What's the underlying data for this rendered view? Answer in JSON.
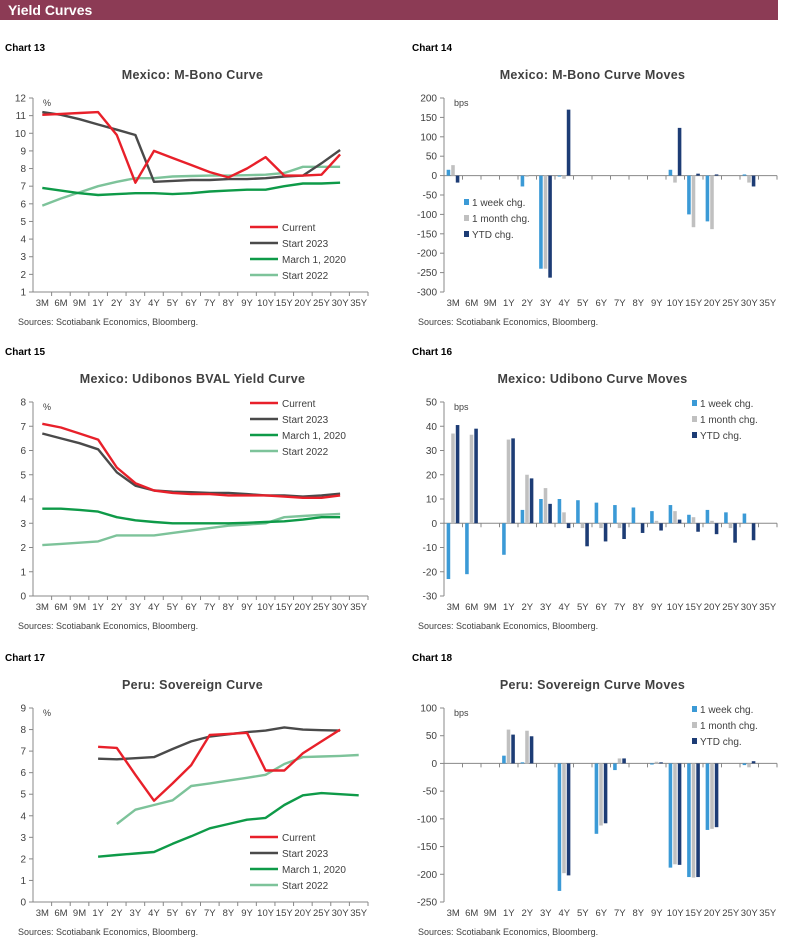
{
  "header": {
    "title": "Yield Curves"
  },
  "colors": {
    "current": "#E8202A",
    "start2023": "#4A4A4A",
    "march2020": "#0E9A48",
    "start2022": "#7DC39A",
    "week": "#3B9AD6",
    "month": "#C0C0C0",
    "ytd": "#1D3C75",
    "header_bg": "#8C3B55"
  },
  "charts": [
    {
      "label": "Chart 13",
      "title": "Mexico: M-Bono Curve",
      "sources": "Sources: Scotiabank Economics, Bloomberg.",
      "chart_data": {
        "type": "line",
        "unit": "%",
        "ylim": [
          1,
          12
        ],
        "ystep": 1,
        "legend": "bottom-right",
        "categories": [
          "3M",
          "6M",
          "9M",
          "1Y",
          "2Y",
          "3Y",
          "4Y",
          "5Y",
          "6Y",
          "7Y",
          "8Y",
          "9Y",
          "10Y",
          "15Y",
          "20Y",
          "25Y",
          "30Y",
          "35Y"
        ],
        "series": [
          {
            "name": "Current",
            "color": "current",
            "values": [
              11.05,
              11.1,
              11.15,
              11.2,
              9.9,
              7.2,
              9.0,
              8.6,
              8.2,
              7.8,
              7.5,
              8.0,
              8.65,
              7.6,
              7.6,
              7.65,
              8.8,
              null
            ]
          },
          {
            "name": "Start 2023",
            "color": "start2023",
            "values": [
              11.2,
              11.05,
              10.8,
              10.5,
              10.2,
              9.9,
              7.25,
              7.3,
              7.35,
              7.35,
              7.4,
              7.4,
              7.45,
              7.55,
              7.6,
              8.3,
              9.05,
              null
            ]
          },
          {
            "name": "March 1, 2020",
            "color": "march2020",
            "values": [
              6.9,
              6.75,
              6.6,
              6.5,
              6.55,
              6.6,
              6.6,
              6.55,
              6.6,
              6.7,
              6.75,
              6.8,
              6.8,
              7.0,
              7.15,
              7.15,
              7.2,
              null
            ]
          },
          {
            "name": "Start 2022",
            "color": "start2022",
            "values": [
              5.9,
              6.3,
              6.65,
              7.0,
              7.25,
              7.45,
              7.45,
              7.55,
              7.58,
              7.6,
              7.6,
              7.62,
              7.65,
              7.75,
              8.1,
              8.1,
              8.1,
              null
            ]
          }
        ]
      }
    },
    {
      "label": "Chart 14",
      "title": "Mexico: M-Bono Curve Moves",
      "sources": "Sources: Scotiabank Economics, Bloomberg.",
      "chart_data": {
        "type": "bar",
        "unit": "bps",
        "ylim": [
          -300,
          200
        ],
        "ystep": 50,
        "legend": "bottom-left",
        "categories": [
          "3M",
          "6M",
          "9M",
          "1Y",
          "2Y",
          "3Y",
          "4Y",
          "5Y",
          "6Y",
          "7Y",
          "8Y",
          "9Y",
          "10Y",
          "15Y",
          "20Y",
          "25Y",
          "30Y",
          "35Y"
        ],
        "series": [
          {
            "name": "1 week chg.",
            "color": "week",
            "values": [
              15,
              null,
              null,
              null,
              -28,
              -240,
              -2,
              null,
              null,
              null,
              null,
              null,
              15,
              -100,
              -118,
              null,
              3,
              null
            ]
          },
          {
            "name": "1 month chg.",
            "color": "month",
            "values": [
              27,
              null,
              null,
              null,
              -3,
              -240,
              -8,
              null,
              null,
              null,
              null,
              null,
              -18,
              -133,
              -138,
              null,
              -18,
              null
            ]
          },
          {
            "name": "YTD chg.",
            "color": "ytd",
            "values": [
              -18,
              null,
              null,
              null,
              null,
              -263,
              170,
              null,
              null,
              null,
              null,
              null,
              123,
              5,
              3,
              null,
              -28,
              null
            ]
          }
        ]
      }
    },
    {
      "label": "Chart 15",
      "title": "Mexico: Udibonos  BVAL Yield Curve",
      "sources": "Sources: Scotiabank Economics, Bloomberg.",
      "chart_data": {
        "type": "line",
        "unit": "%",
        "ylim": [
          0,
          8
        ],
        "ystep": 1,
        "legend": "top-right",
        "categories": [
          "3M",
          "6M",
          "9M",
          "1Y",
          "2Y",
          "3Y",
          "4Y",
          "5Y",
          "6Y",
          "7Y",
          "8Y",
          "9Y",
          "10Y",
          "15Y",
          "20Y",
          "25Y",
          "30Y",
          "35Y"
        ],
        "series": [
          {
            "name": "Current",
            "color": "current",
            "values": [
              7.1,
              6.95,
              6.7,
              6.45,
              5.3,
              4.65,
              4.35,
              4.25,
              4.2,
              4.2,
              4.15,
              4.15,
              4.15,
              4.1,
              4.05,
              4.05,
              4.15,
              null
            ]
          },
          {
            "name": "Start 2023",
            "color": "start2023",
            "values": [
              6.7,
              6.5,
              6.3,
              6.05,
              5.1,
              4.55,
              4.35,
              4.3,
              4.28,
              4.25,
              4.25,
              4.2,
              4.15,
              4.15,
              4.1,
              4.15,
              4.22,
              null
            ]
          },
          {
            "name": "March 1, 2020",
            "color": "march2020",
            "values": [
              3.6,
              3.6,
              3.55,
              3.48,
              3.25,
              3.12,
              3.05,
              3.0,
              3.0,
              3.0,
              3.0,
              3.02,
              3.05,
              3.08,
              3.15,
              3.25,
              3.25,
              null
            ]
          },
          {
            "name": "Start 2022",
            "color": "start2022",
            "values": [
              2.1,
              2.15,
              2.2,
              2.25,
              2.5,
              2.5,
              2.5,
              2.6,
              2.7,
              2.8,
              2.9,
              2.95,
              3.0,
              3.25,
              3.3,
              3.35,
              3.38,
              null
            ]
          }
        ]
      }
    },
    {
      "label": "Chart 16",
      "title": "Mexico: Udibono  Curve Moves",
      "sources": "Sources: Scotiabank Economics, Bloomberg.",
      "chart_data": {
        "type": "bar",
        "unit": "bps",
        "ylim": [
          -30,
          50
        ],
        "ystep": 10,
        "legend": "top-right",
        "categories": [
          "3M",
          "6M",
          "9M",
          "1Y",
          "2Y",
          "3Y",
          "4Y",
          "5Y",
          "6Y",
          "7Y",
          "8Y",
          "9Y",
          "10Y",
          "15Y",
          "20Y",
          "25Y",
          "30Y",
          "35Y"
        ],
        "series": [
          {
            "name": "1 week chg.",
            "color": "week",
            "values": [
              -23,
              -21,
              null,
              -13,
              5.5,
              10,
              10,
              9.5,
              8.5,
              7.5,
              6.5,
              5,
              7.5,
              3.5,
              5.5,
              4.5,
              4,
              null
            ]
          },
          {
            "name": "1 month chg.",
            "color": "month",
            "values": [
              37,
              36.5,
              null,
              34.5,
              20,
              14.5,
              4.5,
              -2,
              -2,
              -2,
              null,
              1,
              5,
              2.5,
              1,
              -2,
              null,
              null
            ]
          },
          {
            "name": "YTD chg.",
            "color": "ytd",
            "values": [
              40.5,
              39,
              null,
              35,
              18.5,
              8,
              -2,
              -9.5,
              -7.5,
              -6.5,
              -4,
              -3,
              1.5,
              -3.5,
              -4.5,
              -8,
              -7,
              null
            ]
          }
        ]
      }
    },
    {
      "label": "Chart 17",
      "title": "Peru: Sovereign Curve",
      "sources": "Sources: Scotiabank Economics, Bloomberg.",
      "chart_data": {
        "type": "line",
        "unit": "%",
        "ylim": [
          0,
          9
        ],
        "ystep": 1,
        "legend": "bottom-right",
        "categories": [
          "3M",
          "6M",
          "9M",
          "1Y",
          "2Y",
          "3Y",
          "4Y",
          "5Y",
          "6Y",
          "7Y",
          "8Y",
          "9Y",
          "10Y",
          "15Y",
          "20Y",
          "25Y",
          "30Y",
          "35Y"
        ],
        "series": [
          {
            "name": "Current",
            "color": "current",
            "values": [
              null,
              null,
              null,
              7.2,
              7.15,
              5.9,
              4.7,
              5.5,
              6.35,
              7.75,
              7.8,
              7.85,
              6.1,
              6.1,
              6.9,
              7.45,
              8.0,
              null
            ]
          },
          {
            "name": "Start 2023",
            "color": "start2023",
            "values": [
              null,
              null,
              null,
              6.65,
              6.62,
              6.67,
              6.72,
              7.1,
              7.45,
              7.68,
              7.78,
              7.88,
              7.95,
              8.1,
              8.0,
              7.97,
              7.95,
              null
            ]
          },
          {
            "name": "March 1, 2020",
            "color": "march2020",
            "values": [
              null,
              null,
              null,
              2.1,
              2.18,
              2.25,
              2.32,
              2.7,
              3.05,
              3.42,
              3.62,
              3.82,
              3.9,
              4.5,
              4.95,
              5.05,
              5.0,
              4.95
            ]
          },
          {
            "name": "Start 2022",
            "color": "start2022",
            "values": [
              null,
              null,
              null,
              null,
              3.62,
              4.28,
              4.5,
              4.72,
              5.38,
              5.5,
              5.63,
              5.76,
              5.9,
              6.4,
              6.72,
              6.75,
              6.78,
              6.82
            ]
          }
        ]
      }
    },
    {
      "label": "Chart 18",
      "title": "Peru: Sovereign Curve Moves",
      "sources": "Sources: Scotiabank Economics, Bloomberg.",
      "chart_data": {
        "type": "bar",
        "unit": "bps",
        "ylim": [
          -250,
          100
        ],
        "ystep": 50,
        "legend": "top-right",
        "categories": [
          "3M",
          "6M",
          "9M",
          "1Y",
          "2Y",
          "3Y",
          "4Y",
          "5Y",
          "6Y",
          "7Y",
          "8Y",
          "9Y",
          "10Y",
          "15Y",
          "20Y",
          "25Y",
          "30Y",
          "35Y"
        ],
        "series": [
          {
            "name": "1 week chg.",
            "color": "week",
            "values": [
              null,
              null,
              null,
              14,
              2,
              null,
              -230,
              null,
              -127,
              -12,
              null,
              -2,
              -188,
              -205,
              -120,
              null,
              -3,
              null
            ]
          },
          {
            "name": "1 month chg.",
            "color": "month",
            "values": [
              null,
              null,
              null,
              61,
              59,
              null,
              -198,
              null,
              -112,
              9,
              null,
              3,
              -182,
              -206,
              -118,
              null,
              -7,
              null
            ]
          },
          {
            "name": "YTD chg.",
            "color": "ytd",
            "values": [
              null,
              null,
              null,
              52,
              49,
              null,
              -202,
              null,
              -108,
              9,
              null,
              2,
              -183,
              -205,
              -115,
              null,
              4,
              null
            ]
          }
        ]
      }
    }
  ]
}
